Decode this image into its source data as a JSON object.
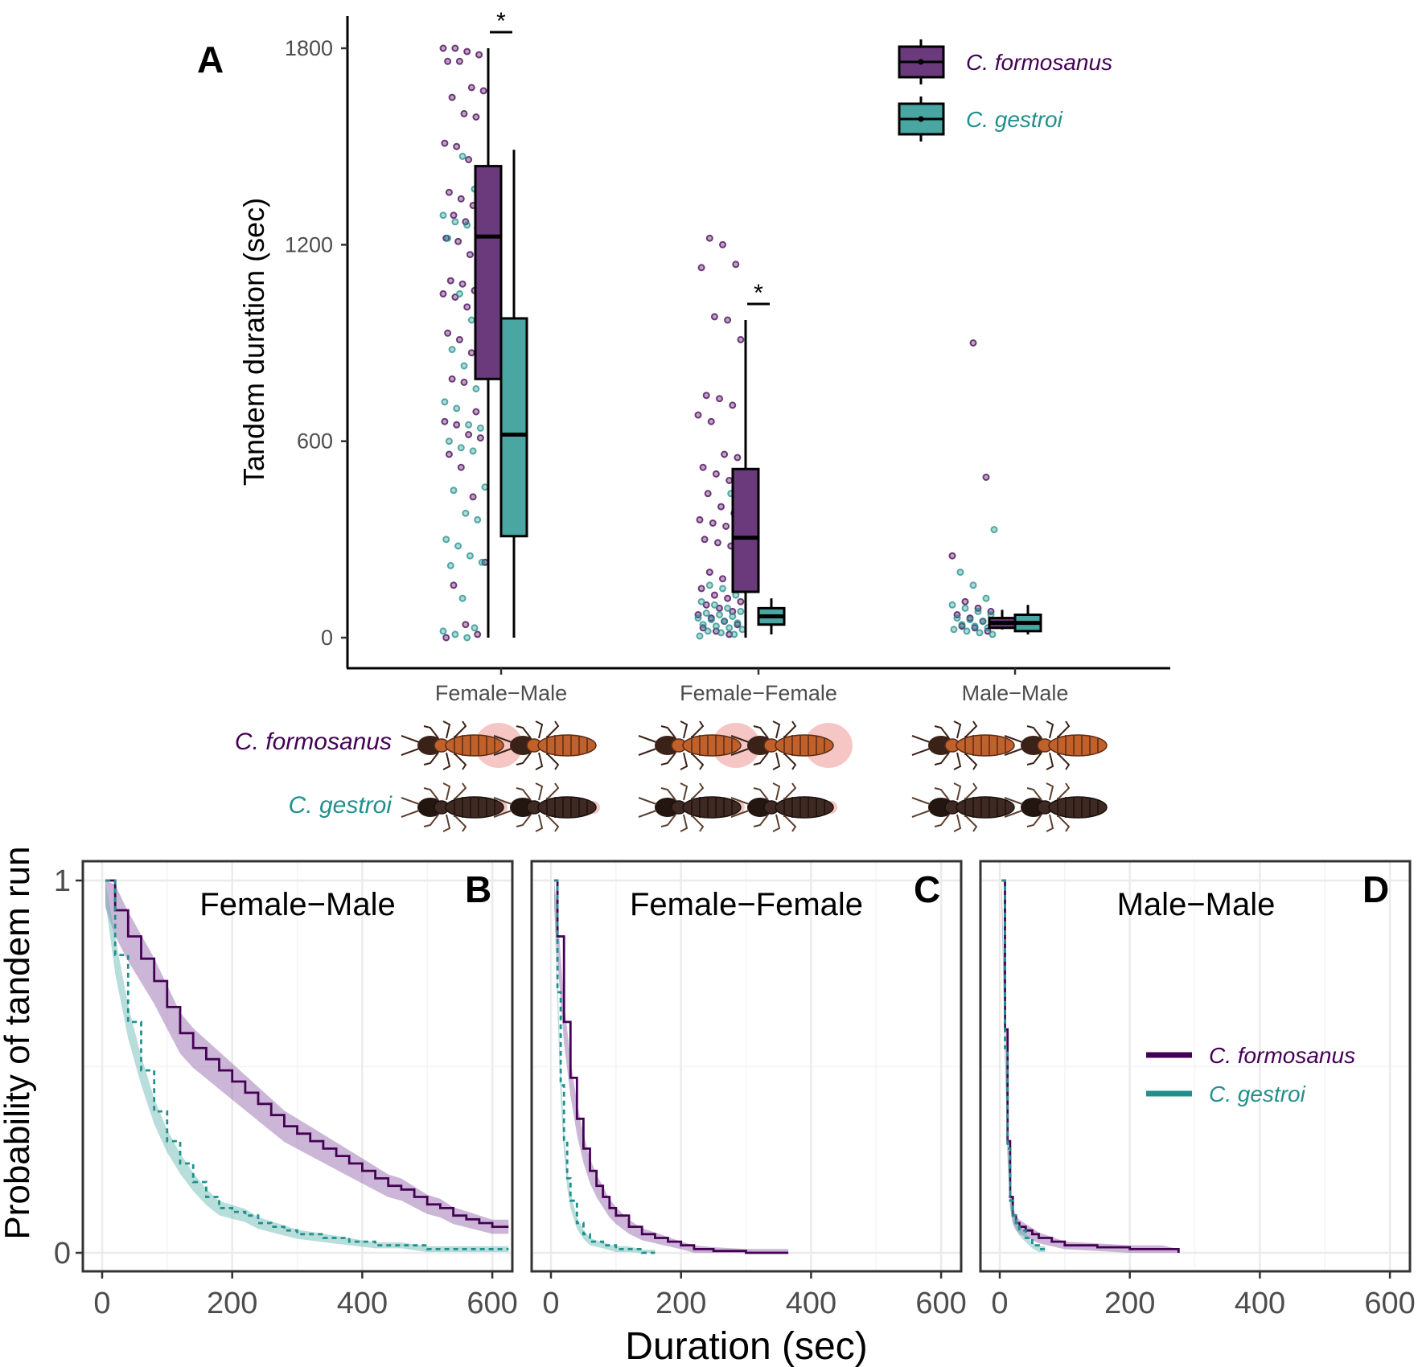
{
  "colors": {
    "formosanus": "#440154",
    "formosanus_fill": "#6b3a7d",
    "gestroi": "#21908c",
    "gestroi_fill": "#4aa6a2",
    "termite_formosanus": "#c0602a",
    "termite_gestroi": "#3e2a22",
    "pheromone_halo": "#f2b8b5"
  },
  "chart_data": [
    {
      "panel": "A",
      "type": "box",
      "ylabel": "Tandem duration (sec)",
      "xlabel": "",
      "ylim": [
        0,
        1800
      ],
      "yticks": [
        0,
        600,
        1200,
        1800
      ],
      "categories": [
        "Female−Male",
        "Female−Female",
        "Male−Male"
      ],
      "legend": {
        "position": "top-right",
        "entries": [
          "C. formosanus",
          "C. gestroi"
        ]
      },
      "row_labels": [
        "C. formosanus",
        "C. gestroi"
      ],
      "significance": [
        {
          "category": "Female−Male",
          "label": "*"
        },
        {
          "category": "Female−Female",
          "label": "*"
        }
      ],
      "series": [
        {
          "name": "C. formosanus",
          "boxes": [
            {
              "category": "Female−Male",
              "min": 0,
              "q1": 790,
              "median": 1225,
              "q3": 1440,
              "max": 1800
            },
            {
              "category": "Female−Female",
              "min": 0,
              "q1": 140,
              "median": 305,
              "q3": 515,
              "max": 970
            },
            {
              "category": "Male−Male",
              "min": 25,
              "q1": 30,
              "median": 45,
              "q3": 60,
              "max": 85
            }
          ],
          "points": {
            "Female−Male": [
              1800,
              1800,
              1790,
              1780,
              1760,
              1760,
              1680,
              1670,
              1650,
              1600,
              1590,
              1510,
              1500,
              1460,
              1430,
              1360,
              1340,
              1320,
              1300,
              1290,
              1270,
              1250,
              1220,
              1210,
              1170,
              1130,
              1090,
              1080,
              1060,
              1050,
              1040,
              1010,
              950,
              930,
              910,
              870,
              800,
              790,
              780,
              690,
              660,
              650,
              620,
              610,
              560,
              520,
              430,
              230,
              160,
              40,
              10,
              0
            ],
            "Female−Female": [
              1220,
              1200,
              1140,
              1130,
              980,
              970,
              910,
              740,
              730,
              710,
              680,
              660,
              560,
              550,
              520,
              500,
              480,
              460,
              440,
              400,
              380,
              360,
              350,
              340,
              310,
              300,
              290,
              280,
              260,
              200,
              180,
              170,
              150,
              130,
              120,
              110,
              100,
              90,
              80,
              70,
              60,
              50,
              40,
              30,
              20,
              10
            ],
            "Male−Male": [
              900,
              490,
              250,
              110,
              90,
              80,
              70,
              60,
              50,
              40,
              35,
              30,
              20
            ]
          }
        },
        {
          "name": "C. gestroi",
          "boxes": [
            {
              "category": "Female−Male",
              "min": 0,
              "q1": 310,
              "median": 620,
              "q3": 975,
              "max": 1490
            },
            {
              "category": "Female−Female",
              "min": 10,
              "q1": 40,
              "median": 65,
              "q3": 90,
              "max": 120
            },
            {
              "category": "Male−Male",
              "min": 10,
              "q1": 20,
              "median": 45,
              "q3": 70,
              "max": 100
            }
          ],
          "points": {
            "Female−Male": [
              1470,
              1370,
              1290,
              1270,
              1260,
              1240,
              1220,
              1050,
              970,
              940,
              880,
              830,
              760,
              720,
              700,
              650,
              640,
              600,
              580,
              570,
              460,
              450,
              380,
              360,
              300,
              280,
              250,
              230,
              220,
              120,
              30,
              20,
              10,
              0
            ],
            "Female−Female": [
              440,
              430,
              160,
              150,
              130,
              110,
              100,
              90,
              80,
              75,
              70,
              65,
              60,
              55,
              50,
              45,
              40,
              35,
              30,
              25,
              20,
              15,
              10,
              5
            ],
            "Male−Male": [
              330,
              200,
              160,
              120,
              100,
              90,
              80,
              70,
              60,
              55,
              50,
              45,
              40,
              35,
              30,
              25,
              20,
              15,
              10
            ]
          }
        }
      ]
    },
    {
      "panel": "B",
      "type": "line",
      "title": "Female−Male",
      "xlabel": "Duration (sec)",
      "ylabel": "Probability of tandem run",
      "xlim": [
        0,
        600
      ],
      "ylim": [
        0,
        1
      ],
      "xticks": [
        0,
        200,
        400,
        600
      ],
      "yticks": [
        0,
        1
      ],
      "series": [
        {
          "name": "C. formosanus",
          "style": "solid",
          "x": [
            5,
            20,
            40,
            60,
            80,
            100,
            120,
            140,
            160,
            180,
            200,
            220,
            240,
            260,
            280,
            300,
            320,
            340,
            360,
            380,
            400,
            420,
            440,
            460,
            480,
            500,
            520,
            540,
            560,
            580,
            600,
            625
          ],
          "y": [
            1.0,
            0.92,
            0.85,
            0.79,
            0.73,
            0.66,
            0.59,
            0.55,
            0.52,
            0.49,
            0.46,
            0.43,
            0.4,
            0.37,
            0.34,
            0.32,
            0.3,
            0.28,
            0.26,
            0.24,
            0.22,
            0.2,
            0.18,
            0.17,
            0.15,
            0.13,
            0.12,
            0.1,
            0.09,
            0.08,
            0.07,
            0.07
          ]
        },
        {
          "name": "C. gestroi",
          "style": "dashed",
          "x": [
            5,
            20,
            40,
            60,
            80,
            100,
            120,
            140,
            160,
            180,
            200,
            220,
            240,
            260,
            280,
            300,
            340,
            380,
            420,
            460,
            500,
            540,
            580,
            625
          ],
          "y": [
            1.0,
            0.8,
            0.62,
            0.49,
            0.38,
            0.3,
            0.24,
            0.19,
            0.15,
            0.12,
            0.11,
            0.1,
            0.08,
            0.07,
            0.06,
            0.05,
            0.04,
            0.03,
            0.02,
            0.02,
            0.01,
            0.01,
            0.01,
            0.01
          ]
        }
      ]
    },
    {
      "panel": "C",
      "type": "line",
      "title": "Female−Female",
      "xlim": [
        0,
        600
      ],
      "ylim": [
        0,
        1
      ],
      "xticks": [
        0,
        200,
        400,
        600
      ],
      "series": [
        {
          "name": "C. formosanus",
          "style": "solid",
          "x": [
            5,
            10,
            20,
            30,
            40,
            50,
            60,
            70,
            80,
            90,
            100,
            120,
            140,
            160,
            180,
            200,
            220,
            250,
            300,
            365
          ],
          "y": [
            1.0,
            0.85,
            0.62,
            0.47,
            0.36,
            0.28,
            0.22,
            0.18,
            0.15,
            0.12,
            0.1,
            0.07,
            0.05,
            0.04,
            0.03,
            0.02,
            0.01,
            0.005,
            0.0,
            0.0
          ]
        },
        {
          "name": "C. gestroi",
          "style": "dashed",
          "x": [
            5,
            10,
            15,
            20,
            25,
            30,
            40,
            50,
            60,
            80,
            100,
            120,
            140,
            160
          ],
          "y": [
            1.0,
            0.7,
            0.45,
            0.3,
            0.2,
            0.14,
            0.08,
            0.05,
            0.03,
            0.02,
            0.01,
            0.01,
            0.0,
            0.0
          ]
        }
      ]
    },
    {
      "panel": "D",
      "type": "line",
      "title": "Male−Male",
      "xlim": [
        0,
        600
      ],
      "ylim": [
        0,
        1
      ],
      "xticks": [
        0,
        200,
        400,
        600
      ],
      "legend": {
        "position": "right",
        "entries": [
          "C. formosanus",
          "C. gestroi"
        ]
      },
      "series": [
        {
          "name": "C. formosanus",
          "style": "solid",
          "x": [
            3,
            8,
            12,
            16,
            20,
            25,
            30,
            40,
            50,
            60,
            80,
            100,
            150,
            200,
            250,
            275
          ],
          "y": [
            1.0,
            0.6,
            0.3,
            0.15,
            0.1,
            0.08,
            0.07,
            0.06,
            0.05,
            0.04,
            0.03,
            0.02,
            0.015,
            0.01,
            0.01,
            0.0
          ]
        },
        {
          "name": "C. gestroi",
          "style": "dashed",
          "x": [
            3,
            8,
            12,
            16,
            20,
            25,
            30,
            40,
            50,
            60,
            70
          ],
          "y": [
            1.0,
            0.55,
            0.28,
            0.14,
            0.1,
            0.08,
            0.06,
            0.04,
            0.02,
            0.01,
            0.01
          ]
        }
      ]
    }
  ],
  "panel_labels": {
    "a": "A",
    "b": "B",
    "c": "C",
    "d": "D"
  }
}
